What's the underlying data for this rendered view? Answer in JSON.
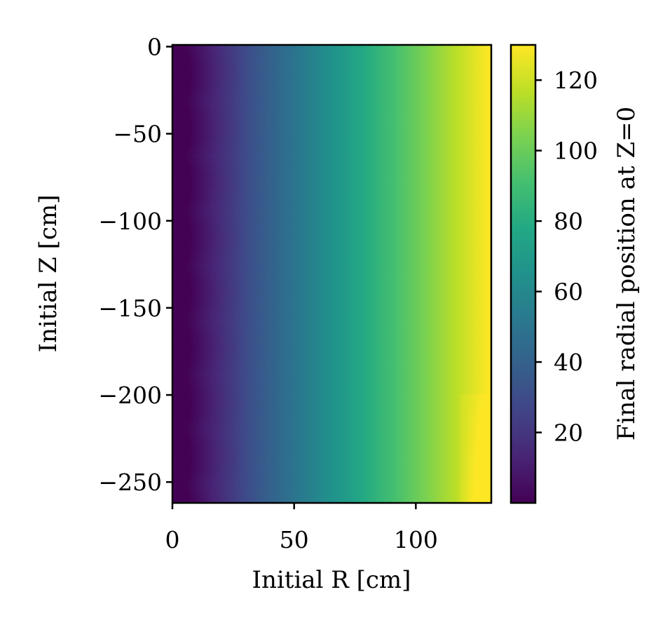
{
  "chart_data": {
    "type": "heatmap",
    "xlabel": "Initial R [cm]",
    "ylabel": "Initial Z [cm]",
    "colorbar_label": "Final radial position at Z=0",
    "colormap": "viridis",
    "xlim": [
      0,
      131
    ],
    "ylim": [
      -262,
      1
    ],
    "clim": [
      0,
      130
    ],
    "x_ticks": [
      0,
      50,
      100
    ],
    "x_tick_labels": [
      "0",
      "50",
      "100"
    ],
    "y_ticks": [
      0,
      -50,
      -100,
      -150,
      -200,
      -250
    ],
    "y_tick_labels": [
      "0",
      "−50",
      "−100",
      "−150",
      "−200",
      "−250"
    ],
    "colorbar_ticks": [
      20,
      40,
      60,
      80,
      100,
      120
    ],
    "colorbar_tick_labels": [
      "20",
      "40",
      "60",
      "80",
      "100",
      "120"
    ],
    "value_model": "final radial position approximately equals initial R; slight inward shift (~3-10 cm) at small R, slightly larger values near R=120-131 for Z below -200",
    "sample_points": [
      {
        "r": 0,
        "z": 0,
        "value": 1
      },
      {
        "r": 25,
        "z": -100,
        "value": 20
      },
      {
        "r": 50,
        "z": -150,
        "value": 47
      },
      {
        "r": 75,
        "z": -100,
        "value": 73
      },
      {
        "r": 100,
        "z": -150,
        "value": 100
      },
      {
        "r": 128,
        "z": -250,
        "value": 130
      }
    ]
  }
}
